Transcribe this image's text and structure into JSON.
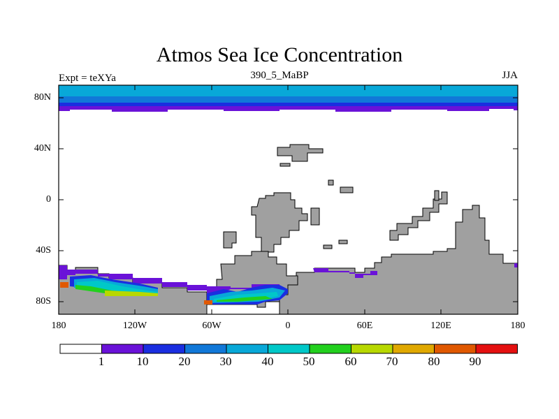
{
  "title": "Atmos Sea Ice Concentration",
  "subtitle_left": "Expt = teXYa",
  "subtitle_center": "390_5_MaBP",
  "subtitle_right": "JJA",
  "lat_labels": [
    "80N",
    "40N",
    "0",
    "40S",
    "80S"
  ],
  "lon_labels": [
    "180",
    "120W",
    "60W",
    "0",
    "60E",
    "120E",
    "180"
  ],
  "colorbar": {
    "labels": [
      "1",
      "10",
      "20",
      "30",
      "40",
      "50",
      "60",
      "70",
      "80",
      "90"
    ],
    "colors": [
      "#ffffff",
      "#6a12d8",
      "#1a2ee0",
      "#1178d8",
      "#08a8d8",
      "#00c8c8",
      "#22d01e",
      "#b8d800",
      "#e0a800",
      "#e05800",
      "#e41010"
    ]
  },
  "colors": {
    "land": "#a0a0a0",
    "arctic_ice_bands": [
      "#6a12d8",
      "#1a2ee0",
      "#1178d8",
      "#08a8d8"
    ]
  }
}
